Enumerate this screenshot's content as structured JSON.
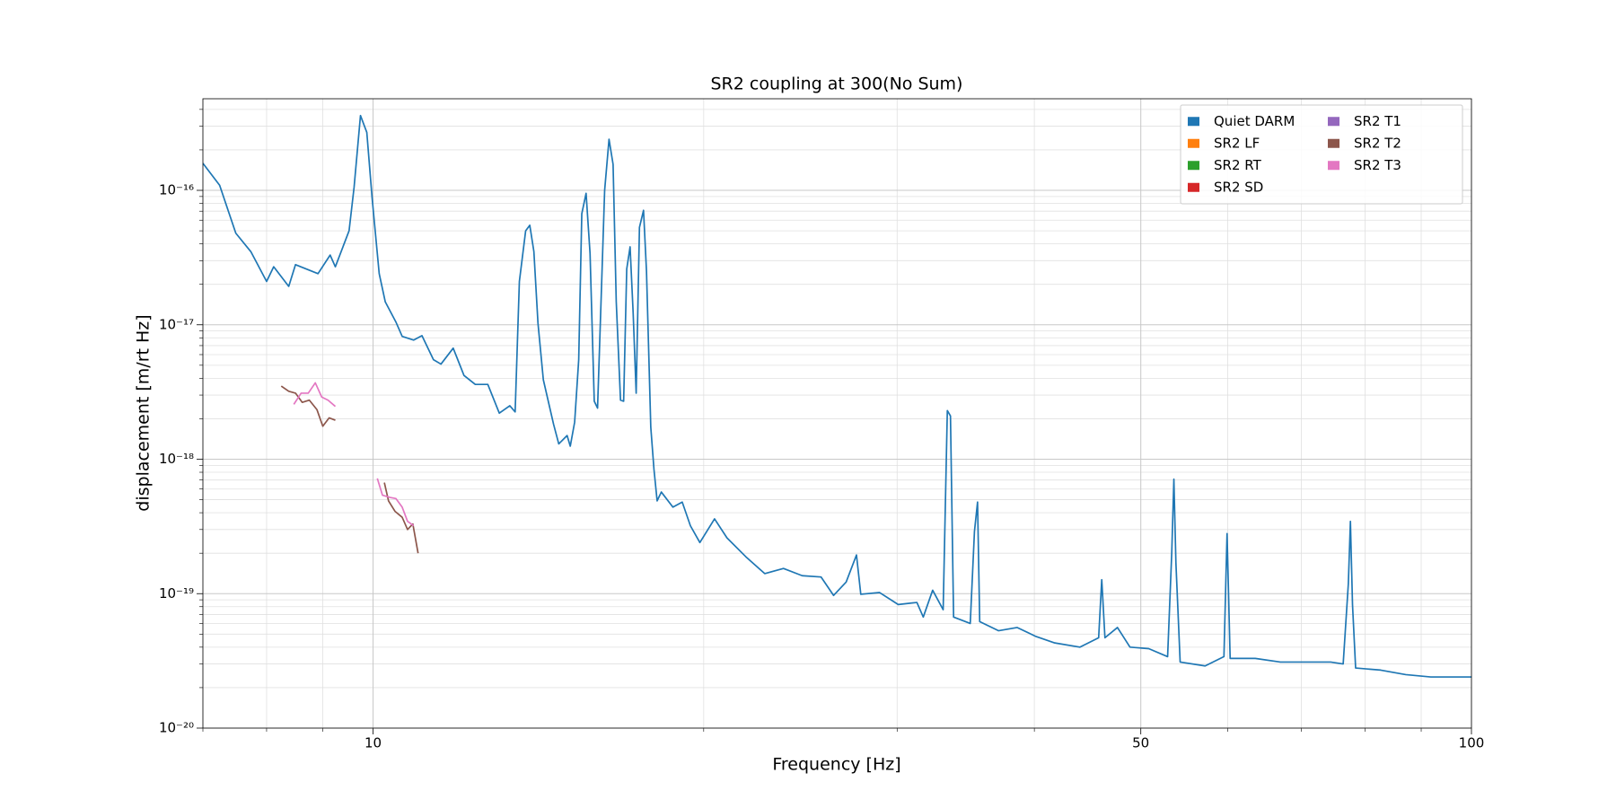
{
  "chart_data": {
    "type": "line",
    "title": "SR2 coupling at 300(No Sum)",
    "xlabel": "Frequency [Hz]",
    "ylabel": "displacement [m/rt Hz]",
    "xscale": "log",
    "yscale": "log",
    "grid": true,
    "legend_loc": "upper right",
    "legend_columns": 2,
    "xlim": [
      7,
      100
    ],
    "xticks": [
      10,
      50,
      100
    ],
    "xminorticks": [
      7,
      8,
      9,
      20,
      30,
      40,
      60,
      70,
      80,
      90
    ],
    "ylim": [
      1e-20,
      4.8e-16
    ],
    "yticks": [
      {
        "value": 1e-20,
        "label": "10⁻²⁰"
      },
      {
        "value": 1e-19,
        "label": "10⁻¹⁹"
      },
      {
        "value": 1e-18,
        "label": "10⁻¹⁸"
      },
      {
        "value": 1e-17,
        "label": "10⁻¹⁷"
      },
      {
        "value": 1e-16,
        "label": "10⁻¹⁶"
      }
    ],
    "yminorticks": [
      2e-20,
      3e-20,
      4e-20,
      5e-20,
      6e-20,
      7e-20,
      8e-20,
      9e-20,
      2e-19,
      3e-19,
      4e-19,
      5e-19,
      6e-19,
      7e-19,
      8e-19,
      9e-19,
      2e-18,
      3e-18,
      4e-18,
      5e-18,
      6e-18,
      7e-18,
      8e-18,
      9e-18,
      2e-17,
      3e-17,
      4e-17,
      5e-17,
      6e-17,
      7e-17,
      8e-17,
      9e-17,
      2e-16,
      3e-16,
      4e-16
    ],
    "series": [
      {
        "name": "Quiet DARM",
        "color": "#1f77b4",
        "x": [
          7.0,
          7.25,
          7.5,
          7.74,
          8.0,
          8.12,
          8.38,
          8.5,
          8.91,
          9.14,
          9.24,
          9.51,
          9.61,
          9.74,
          9.87,
          9.98,
          10.13,
          10.26,
          10.49,
          10.63,
          10.89,
          11.08,
          11.35,
          11.53,
          11.83,
          12.1,
          12.39,
          12.72,
          13.03,
          13.32,
          13.47,
          13.59,
          13.77,
          13.89,
          14.01,
          14.13,
          14.29,
          14.6,
          14.76,
          15.02,
          15.12,
          15.26,
          15.39,
          15.49,
          15.63,
          15.76,
          15.9,
          16.01,
          16.15,
          16.25,
          16.4,
          16.54,
          16.65,
          16.8,
          16.91,
          17.02,
          17.14,
          17.25,
          17.36,
          17.48,
          17.63,
          17.74,
          17.9,
          18.02,
          18.14,
          18.3,
          18.75,
          19.12,
          19.45,
          19.84,
          20.46,
          21.0,
          21.85,
          22.73,
          23.64,
          24.59,
          25.58,
          26.26,
          26.96,
          27.55,
          27.8,
          28.91,
          30.07,
          31.27,
          31.69,
          32.32,
          33.04,
          33.33,
          33.55,
          33.77,
          34.97,
          35.28,
          35.51,
          35.67,
          37.1,
          38.59,
          40.14,
          41.75,
          44.0,
          45.77,
          46.07,
          46.38,
          47.61,
          48.88,
          50.84,
          52.89,
          53.35,
          53.59,
          53.82,
          54.3,
          57.22,
          59.52,
          59.91,
          60.3,
          63.56,
          66.99,
          70.63,
          74.44,
          76.42,
          77.25,
          77.59,
          77.93,
          78.44,
          82.67,
          87.13,
          91.83,
          96.76,
          100
        ],
        "values": [
          1.59e-16,
          1.09e-16,
          4.8e-17,
          3.5e-17,
          2.1e-17,
          2.7e-17,
          1.93e-17,
          2.8e-17,
          2.4e-17,
          3.3e-17,
          2.7e-17,
          5e-17,
          1.05e-16,
          3.6e-16,
          2.7e-16,
          8.8e-17,
          2.4e-17,
          1.48e-17,
          1.05e-17,
          8.2e-18,
          7.7e-18,
          8.3e-18,
          5.5e-18,
          5.1e-18,
          6.7e-18,
          4.2e-18,
          3.6e-18,
          3.6e-18,
          2.2e-18,
          2.5e-18,
          2.25e-18,
          2.1e-17,
          5e-17,
          5.5e-17,
          3.5e-17,
          1.03e-17,
          3.9e-18,
          1.82e-18,
          1.3e-18,
          1.5e-18,
          1.25e-18,
          1.89e-18,
          5.5e-18,
          6.7e-17,
          9.5e-17,
          3.4e-17,
          2.7e-18,
          2.4e-18,
          2.1e-17,
          1e-16,
          2.4e-16,
          1.56e-16,
          1.48e-17,
          2.75e-18,
          2.7e-18,
          2.6e-17,
          3.8e-17,
          1.23e-17,
          3.1e-18,
          5.3e-17,
          7.1e-17,
          2.5e-17,
          1.73e-18,
          8.4e-19,
          4.9e-19,
          5.7e-19,
          4.4e-19,
          4.8e-19,
          3.2e-19,
          2.4e-19,
          3.6e-19,
          2.6e-19,
          1.88e-19,
          1.41e-19,
          1.54e-19,
          1.36e-19,
          1.33e-19,
          9.7e-20,
          1.22e-19,
          1.94e-19,
          9.9e-20,
          1.02e-19,
          8.3e-20,
          8.6e-20,
          6.7e-20,
          1.06e-19,
          7.6e-20,
          2.3e-18,
          2.1e-18,
          6.7e-20,
          6e-20,
          2.9e-19,
          4.8e-19,
          6.2e-20,
          5.3e-20,
          5.6e-20,
          4.8e-20,
          4.3e-20,
          4e-20,
          4.7e-20,
          1.27e-19,
          4.7e-20,
          5.6e-20,
          4e-20,
          3.9e-20,
          3.4e-20,
          2e-19,
          7.1e-19,
          1.69e-19,
          3.1e-20,
          2.9e-20,
          3.4e-20,
          2.8e-19,
          3.3e-20,
          3.3e-20,
          3.1e-20,
          3.1e-20,
          3.1e-20,
          3e-20,
          1.18e-19,
          3.45e-19,
          8.3e-20,
          2.8e-20,
          2.7e-20,
          2.5e-20,
          2.4e-20,
          2.4e-20,
          2.4e-20
        ]
      },
      {
        "name": "SR2 LF",
        "color": "#ff7f0e",
        "x": [],
        "values": []
      },
      {
        "name": "SR2 RT",
        "color": "#2ca02c",
        "x": [],
        "values": []
      },
      {
        "name": "SR2 SD",
        "color": "#d62728",
        "x": [],
        "values": []
      },
      {
        "name": "SR2 T1",
        "color": "#9467bd",
        "x": [],
        "values": []
      },
      {
        "name": "SR2 T2",
        "color": "#8c564b",
        "x": [
          8.25,
          8.38,
          8.5,
          8.62,
          8.75,
          8.89,
          9.0,
          9.12,
          9.24,
          null,
          10.24,
          10.33,
          10.47,
          10.63,
          10.75,
          10.87,
          10.99
        ],
        "values": [
          3.5e-18,
          3.2e-18,
          3.1e-18,
          2.65e-18,
          2.75e-18,
          2.34e-18,
          1.76e-18,
          2.03e-18,
          1.95e-18,
          null,
          6.7e-19,
          4.9e-19,
          4.1e-19,
          3.7e-19,
          3e-19,
          3.3e-19,
          2e-19
        ]
      },
      {
        "name": "SR2 T3",
        "color": "#e377c2",
        "x": [
          8.47,
          8.6,
          8.73,
          8.86,
          8.98,
          9.1,
          9.24,
          null,
          10.09,
          10.2,
          10.36,
          10.49,
          10.63,
          10.75,
          10.89
        ],
        "values": [
          2.56e-18,
          3.1e-18,
          3.1e-18,
          3.7e-18,
          2.9e-18,
          2.75e-18,
          2.47e-18,
          null,
          7.2e-19,
          5.4e-19,
          5.2e-19,
          5.1e-19,
          4.4e-19,
          3.45e-19,
          3.2e-19
        ]
      }
    ]
  }
}
